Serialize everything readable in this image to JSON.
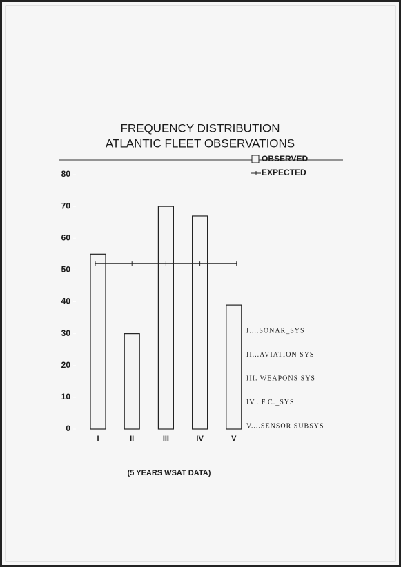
{
  "chart_data": {
    "type": "bar",
    "title": "FREQUENCY DISTRIBUTION",
    "subtitle": "ATLANTIC FLEET OBSERVATIONS",
    "xlabel": "(5 YEARS WSAT DATA)",
    "categories": [
      "I",
      "II",
      "III",
      "IV",
      "V"
    ],
    "series": [
      {
        "name": "OBSERVED",
        "type": "bar",
        "color": "#f4f4f4",
        "values": [
          55,
          30,
          70,
          67,
          39
        ]
      },
      {
        "name": "EXPECTED",
        "type": "line",
        "color": "#222222",
        "values": [
          52,
          52,
          52,
          52,
          52
        ]
      }
    ],
    "ylim": [
      0,
      80
    ],
    "yticks": [
      0,
      10,
      20,
      30,
      40,
      50,
      60,
      70,
      80
    ],
    "annotations": [
      "I....SONAR_SYS",
      "II...AVIATION SYS",
      "III. WEAPONS SYS",
      "IV...F.C._SYS",
      "V....SENSOR SUBSYS"
    ]
  }
}
